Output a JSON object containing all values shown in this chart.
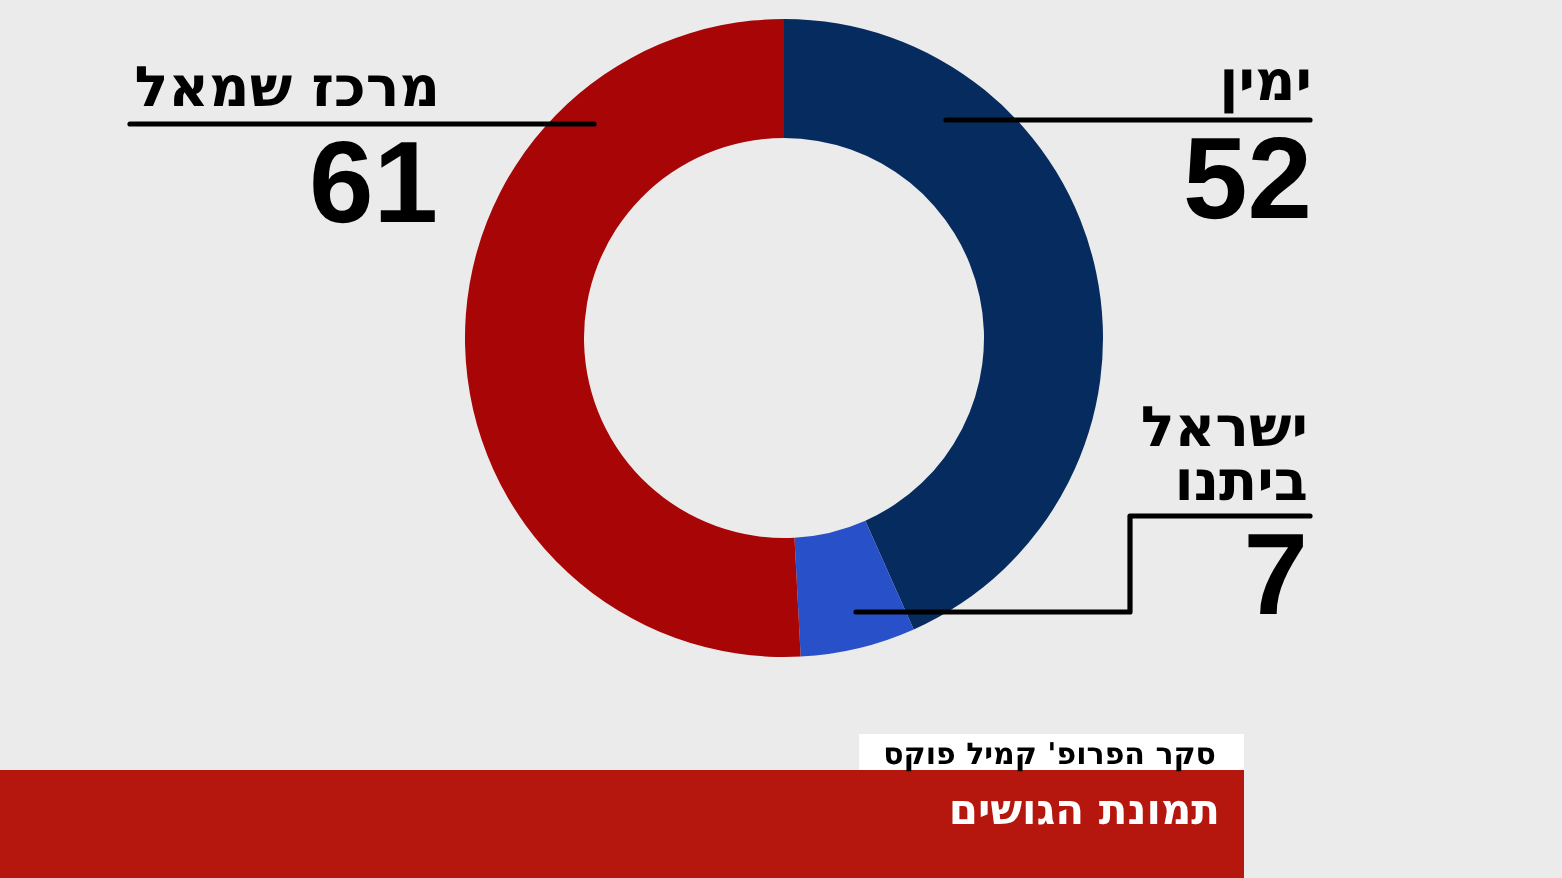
{
  "chart_data": {
    "type": "donut",
    "title": "תמונת הגושים",
    "categories": [
      "ימין",
      "ישראל ביתנו",
      "מרכז שמאל"
    ],
    "values": [
      52,
      7,
      61
    ],
    "colors": [
      "#062b5e",
      "#2850c8",
      "#a80506"
    ],
    "data_labels": true,
    "annotations": [
      "סקר הפרופ' קמיל פוקס"
    ]
  }
}
